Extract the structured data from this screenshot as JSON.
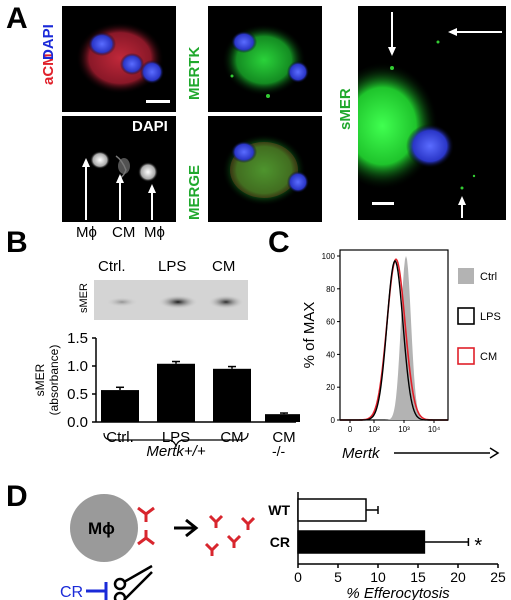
{
  "panels": {
    "a": "A",
    "b": "B",
    "c": "C",
    "d": "D"
  },
  "panel_a": {
    "acm_label": "aCM",
    "dapi_label": "DAPI",
    "dapi_label2": "DAPI",
    "mertk_label": "MERTK",
    "merge_label": "MERGE",
    "smer_label": "sMER",
    "cell_labels": [
      "Mϕ",
      "CM",
      "Mϕ"
    ]
  },
  "panel_b": {
    "blot_lanes": [
      "Ctrl.",
      "LPS",
      "CM"
    ],
    "blot_label": "sMER",
    "chart_data": {
      "type": "bar",
      "categories": [
        "Ctrl.",
        "LPS",
        "CM",
        "CM"
      ],
      "values": [
        0.57,
        1.04,
        0.95,
        0.14
      ],
      "errors": [
        0.05,
        0.04,
        0.04,
        0.02
      ],
      "ylabel": "sMER (absorbance)",
      "ylim": [
        0,
        1.5
      ],
      "yticks": [
        "0.0",
        "0.5",
        "1.0",
        "1.5"
      ],
      "genotype_label": "Mertk+/+",
      "ko_label": "-/-"
    }
  },
  "panel_c": {
    "chart_data": {
      "type": "area",
      "ylabel": "% of MAX",
      "xlabel": "Mertk",
      "yticks": [
        "0",
        "20",
        "40",
        "60",
        "80",
        "100"
      ],
      "xticks": [
        "0",
        "10²",
        "10³",
        "10⁴"
      ],
      "ylim": [
        0,
        100
      ],
      "legend": [
        "Ctrl",
        "LPS",
        "CM"
      ],
      "legend_placement": "right",
      "series_colors": {
        "Ctrl": "#b3b3b3",
        "LPS": "#000000",
        "CM": "#e0202a"
      }
    }
  },
  "panel_d": {
    "cell_label": "Mϕ",
    "cr_label": "CR",
    "chart_data": {
      "type": "bar",
      "orientation": "horizontal",
      "categories": [
        "WT",
        "CR"
      ],
      "values": [
        8.5,
        15.8
      ],
      "errors": [
        1.5,
        5.5
      ],
      "xlabel": "% Efferocytosis",
      "xlim": [
        0,
        25
      ],
      "xticks": [
        "0",
        "5",
        "10",
        "15",
        "20",
        "25"
      ],
      "significance": "*"
    }
  }
}
